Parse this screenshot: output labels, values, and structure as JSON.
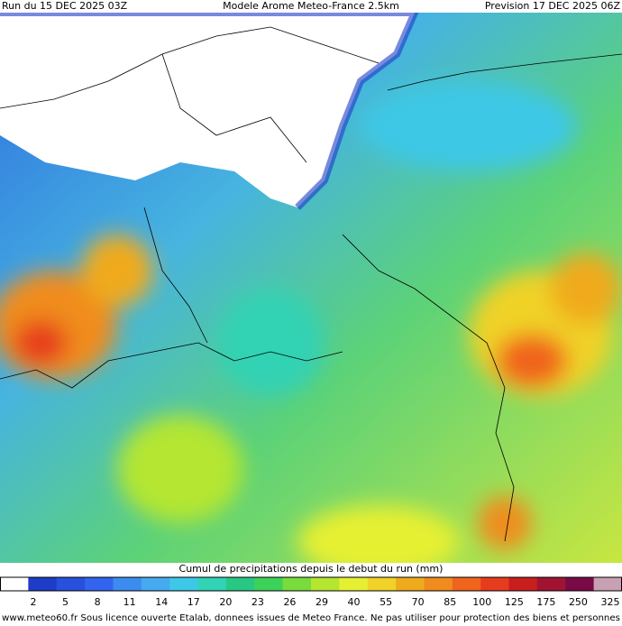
{
  "header": {
    "run": "Run du 15 DEC 2025 03Z",
    "model": "Modele Arome Meteo-France 2.5km",
    "forecast": "Prevision 17 DEC 2025 06Z"
  },
  "colorbar": {
    "title": "Cumul de precipitations depuis le debut du run (mm)",
    "labels": [
      "2",
      "5",
      "8",
      "11",
      "14",
      "17",
      "20",
      "23",
      "26",
      "29",
      "40",
      "55",
      "70",
      "85",
      "100",
      "125",
      "175",
      "250",
      "325"
    ],
    "colors": [
      "#ffffff",
      "#1e3cc8",
      "#2850dc",
      "#3264f0",
      "#3c8cf0",
      "#46aaf0",
      "#3cc8e6",
      "#32d2b4",
      "#28c882",
      "#3cd25a",
      "#78dc3c",
      "#b4e632",
      "#e6f032",
      "#f0d228",
      "#f0aa1e",
      "#f08c1e",
      "#f0641e",
      "#e63c1e",
      "#c81e1e",
      "#a01432",
      "#780a46",
      "#c8a0b4"
    ]
  },
  "footer": "www.meteo60.fr Sous licence ouverte Etalab, donnees issues de Meteo France. Ne pas utiliser pour protection des biens et personnes"
}
